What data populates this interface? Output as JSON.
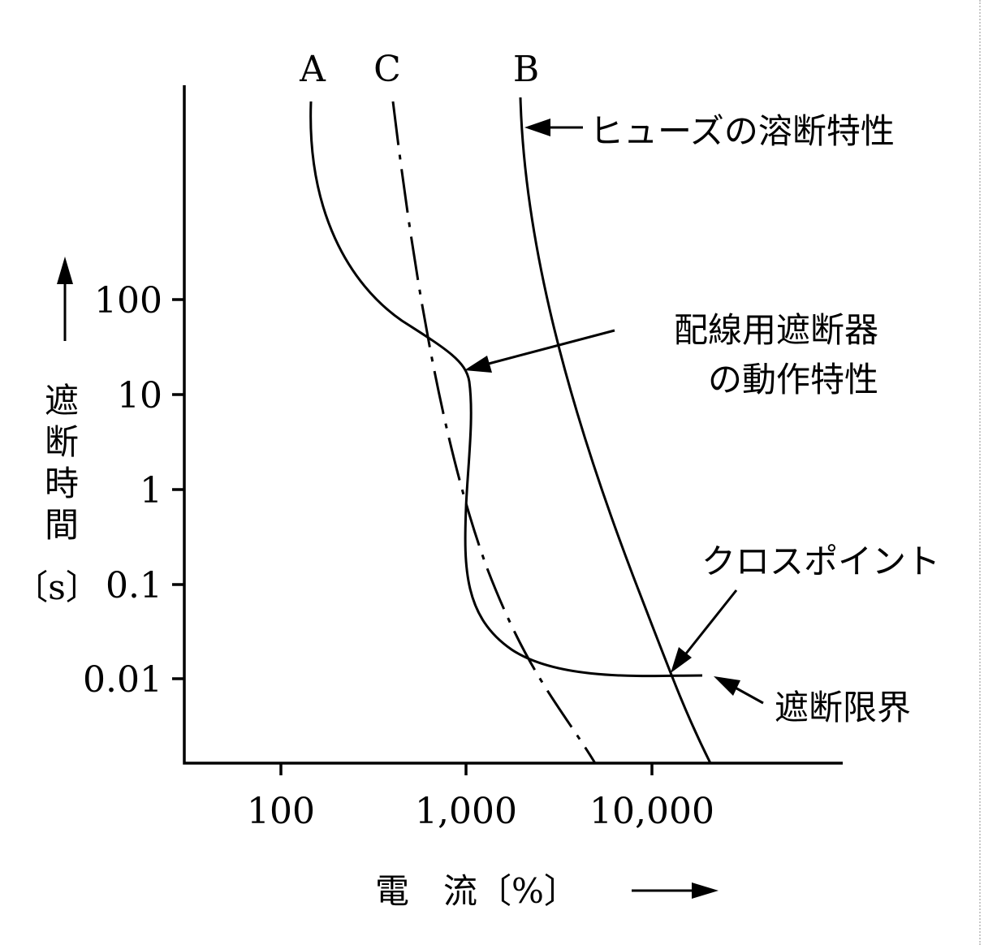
{
  "curves": {
    "a_label": "A",
    "c_label": "C",
    "b_label": "B"
  },
  "annotations": {
    "fuse_characteristic": "ヒューズの溶断特性",
    "breaker_line1": "配線用遮断器",
    "breaker_line2": "の動作特性",
    "cross_point": "クロスポイント",
    "breaking_limit": "遮断限界"
  },
  "y_axis": {
    "label_chars": [
      "遮",
      "断",
      "時",
      "間"
    ],
    "unit": "〔s〕",
    "ticks": [
      "100",
      "10",
      "1",
      "0.1",
      "0.01"
    ]
  },
  "x_axis": {
    "label": "電　流〔%〕",
    "ticks": [
      "100",
      "1,000",
      "10,000"
    ]
  }
}
